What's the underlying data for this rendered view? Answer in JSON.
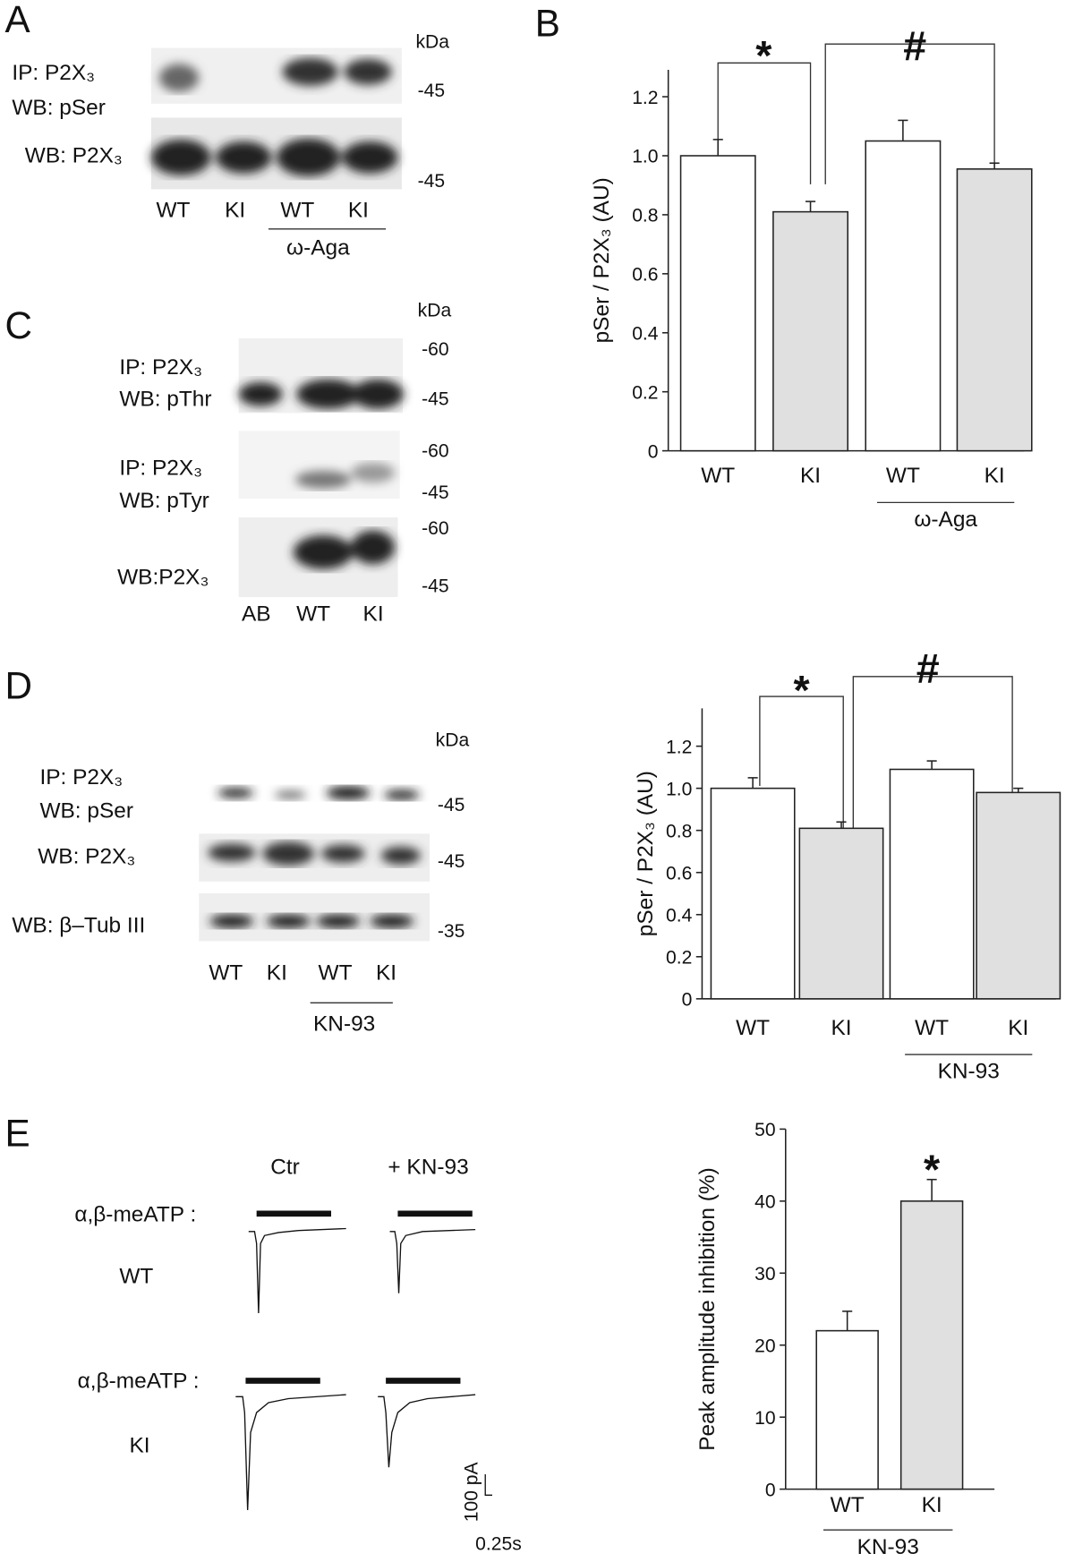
{
  "chart_data": [
    {
      "type": "bar",
      "panel_label": "B",
      "ylabel": "pSer / P2X₃ (AU)",
      "categories": [
        "WT",
        "KI",
        "WT",
        "KI"
      ],
      "values": [
        1.0,
        0.81,
        1.05,
        0.955
      ],
      "errors": [
        0.055,
        0.035,
        0.07,
        0.02
      ],
      "colors": [
        "#ffffff",
        "#e0e0e0",
        "#ffffff",
        "#e0e0e0"
      ],
      "ylim": [
        0,
        1.2
      ],
      "yticks": [
        0,
        0.2,
        0.4,
        0.6,
        0.8,
        {
          "value": 1,
          "label": "1.0"
        },
        1.2
      ],
      "group_label": "ω-Aga",
      "annotations": [
        "*",
        "#"
      ]
    },
    {
      "type": "bar",
      "ylabel": "pSer / P2X₃ (AU)",
      "categories": [
        "WT",
        "KI",
        "WT",
        "KI"
      ],
      "values": [
        1.0,
        0.81,
        1.09,
        0.98
      ],
      "errors": [
        0.05,
        0.03,
        0.04,
        0.02
      ],
      "colors": [
        "#ffffff",
        "#e0e0e0",
        "#ffffff",
        "#e0e0e0"
      ],
      "ylim": [
        0,
        1.2
      ],
      "yticks": [
        0,
        0.2,
        0.4,
        0.6,
        0.8,
        {
          "value": 1,
          "label": "1.0"
        },
        1.2
      ],
      "group_label": "KN-93",
      "annotations": [
        "*",
        "#"
      ]
    },
    {
      "type": "bar",
      "ylabel": "Peak amplitude inhibition (%)",
      "categories": [
        "WT",
        "KI"
      ],
      "values": [
        22,
        40
      ],
      "errors": [
        2.7,
        3
      ],
      "colors": [
        "#ffffff",
        "#e0e0e0"
      ],
      "ylim": [
        0,
        50
      ],
      "yticks": [
        0,
        10,
        20,
        30,
        40,
        50
      ],
      "group_label": "KN-93",
      "annotations": [
        "*"
      ]
    }
  ],
  "panel_a": {
    "label": "A",
    "unit": "kDa",
    "row_labels": [
      "IP: P2X₃",
      "WB: pSer",
      "WB: P2X₃"
    ],
    "markers": [
      "-45",
      "-45"
    ],
    "lanes": [
      "WT",
      "KI",
      "WT",
      "KI"
    ],
    "treatment": "ω-Aga"
  },
  "panel_c": {
    "label": "C",
    "unit": "kDa",
    "row_labels": [
      "IP: P2X₃",
      "WB: pThr",
      "IP: P2X₃",
      "WB: pTyr",
      "WB:P2X₃"
    ],
    "markers": [
      "-60",
      "-45",
      "-60",
      "-45",
      "-60",
      "-45"
    ],
    "lanes": [
      "AB",
      "WT",
      "KI"
    ]
  },
  "panel_d": {
    "label": "D",
    "unit": "kDa",
    "row_labels": [
      "IP: P2X₃",
      "WB: pSer",
      "WB: P2X₃",
      "WB: β–Tub III"
    ],
    "markers": [
      "-45",
      "-45",
      "-35"
    ],
    "lanes": [
      "WT",
      "KI",
      "WT",
      "KI"
    ],
    "treatment": "KN-93"
  },
  "panel_e": {
    "label": "E",
    "conditions": [
      "Ctr",
      "+ KN-93"
    ],
    "stimulus": [
      "α,β-meATP :",
      "α,β-meATP :"
    ],
    "genotypes": [
      "WT",
      "KI"
    ],
    "scale": [
      "100 pA",
      "0.25s"
    ]
  }
}
